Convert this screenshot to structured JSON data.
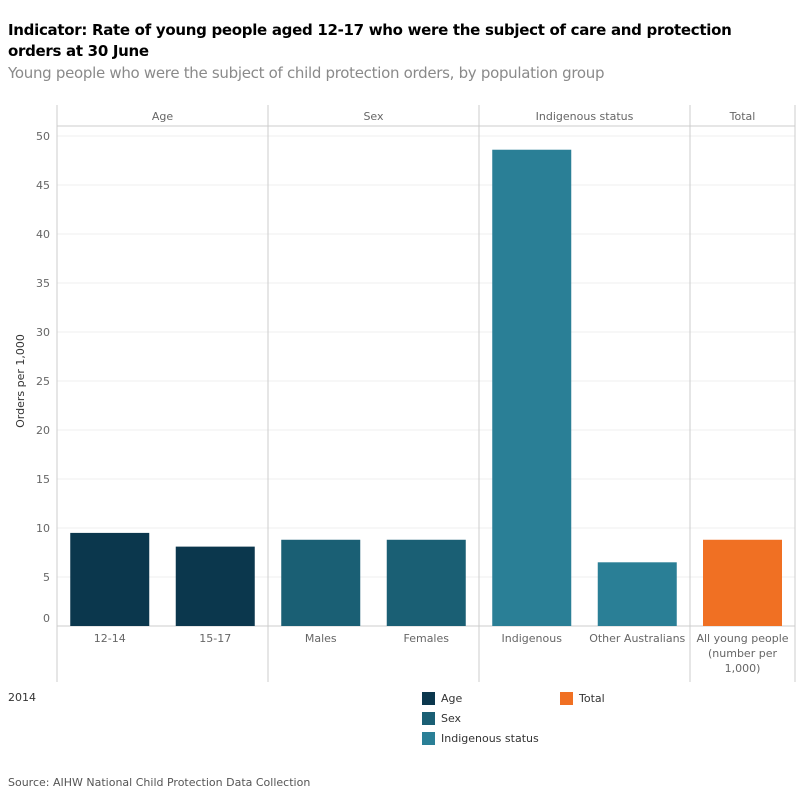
{
  "title": "Indicator: Rate of young people aged 12-17 who were the subject of care and protection orders at 30 June",
  "subtitle": "Young people who were the subject of child protection orders, by population group",
  "year": "2014",
  "source": "Source: AIHW National Child Protection Data Collection",
  "colors": {
    "Age": "#0b374d",
    "Sex": "#1a5f74",
    "Indigenous status": "#2a7f96",
    "Total": "#f07023"
  },
  "chart_data": {
    "type": "bar",
    "ylabel": "Orders per 1,000",
    "ylim": [
      0,
      50
    ],
    "yticks": [
      0,
      5,
      10,
      15,
      20,
      25,
      30,
      35,
      40,
      45,
      50
    ],
    "grid": true,
    "legend_position": "bottom",
    "panels": [
      {
        "name": "Age",
        "categories": [
          "12-14",
          "15-17"
        ],
        "values": [
          9.5,
          8.1
        ]
      },
      {
        "name": "Sex",
        "categories": [
          "Males",
          "Females"
        ],
        "values": [
          8.8,
          8.8
        ]
      },
      {
        "name": "Indigenous status",
        "categories": [
          "Indigenous",
          "Other Australians"
        ],
        "values": [
          48.6,
          6.5
        ]
      },
      {
        "name": "Total",
        "categories": [
          "All young people (number per 1,000)"
        ],
        "values": [
          8.8
        ]
      }
    ],
    "legend": [
      "Age",
      "Sex",
      "Indigenous status",
      "Total"
    ]
  }
}
